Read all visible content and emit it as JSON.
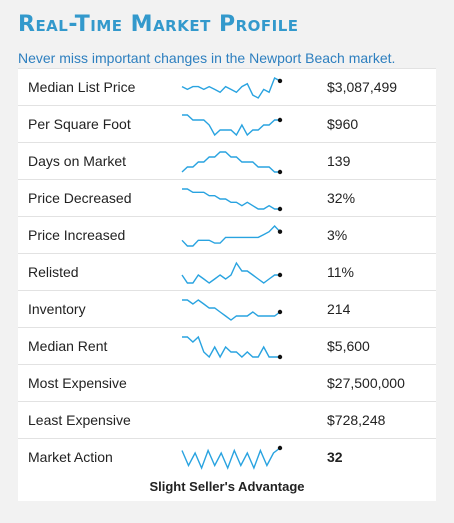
{
  "title": "Real-Time Market Profile",
  "subtitle": "Never miss important changes in the Newport Beach market.",
  "accent_color": "#3399cc",
  "sparkline_color": "#29a3e0",
  "rows": [
    {
      "label": "Median List Price",
      "value": "$3,087,499",
      "trend": [
        6,
        5,
        6,
        6,
        5,
        6,
        5,
        4,
        6,
        5,
        4,
        6,
        7,
        3,
        2,
        5,
        4,
        9,
        8
      ]
    },
    {
      "label": "Per Square Foot",
      "value": "$960",
      "trend": [
        9,
        9,
        8,
        8,
        8,
        7,
        5,
        6,
        6,
        6,
        5,
        7,
        5,
        6,
        6,
        7,
        7,
        8,
        8
      ]
    },
    {
      "label": "Days on Market",
      "value": "139",
      "trend": [
        4,
        5,
        5,
        6,
        6,
        7,
        7,
        8,
        8,
        7,
        7,
        6,
        6,
        6,
        5,
        5,
        5,
        4,
        4
      ]
    },
    {
      "label": "Price Decreased",
      "value": "32%",
      "trend": [
        9,
        9,
        8,
        8,
        8,
        7,
        7,
        6,
        6,
        5,
        5,
        4,
        5,
        4,
        3,
        3,
        4,
        3,
        3
      ]
    },
    {
      "label": "Price Increased",
      "value": "3%",
      "trend": [
        4,
        2,
        2,
        4,
        4,
        4,
        3,
        3,
        5,
        5,
        5,
        5,
        5,
        5,
        5,
        6,
        7,
        9,
        7
      ]
    },
    {
      "label": "Relisted",
      "value": "11%",
      "trend": [
        6,
        4,
        4,
        6,
        5,
        4,
        5,
        6,
        5,
        6,
        9,
        7,
        7,
        6,
        5,
        4,
        5,
        6,
        6
      ]
    },
    {
      "label": "Inventory",
      "value": "214",
      "trend": [
        9,
        9,
        8,
        9,
        8,
        7,
        7,
        6,
        5,
        4,
        5,
        5,
        5,
        6,
        5,
        5,
        5,
        5,
        6
      ]
    },
    {
      "label": "Median Rent",
      "value": "$5,600",
      "trend": [
        8,
        8,
        7,
        8,
        5,
        4,
        6,
        4,
        6,
        5,
        5,
        4,
        5,
        4,
        4,
        6,
        4,
        4,
        4
      ]
    },
    {
      "label": "Most Expensive",
      "value": "$27,500,000",
      "trend": null
    },
    {
      "label": "Least Expensive",
      "value": "$728,248",
      "trend": null
    }
  ],
  "market_action": {
    "label": "Market Action",
    "value": "32",
    "trend": [
      8,
      2,
      7,
      1,
      8,
      2,
      7,
      1,
      8,
      2,
      7,
      1,
      8,
      2,
      7,
      9
    ],
    "note": "Slight Seller's Advantage"
  }
}
